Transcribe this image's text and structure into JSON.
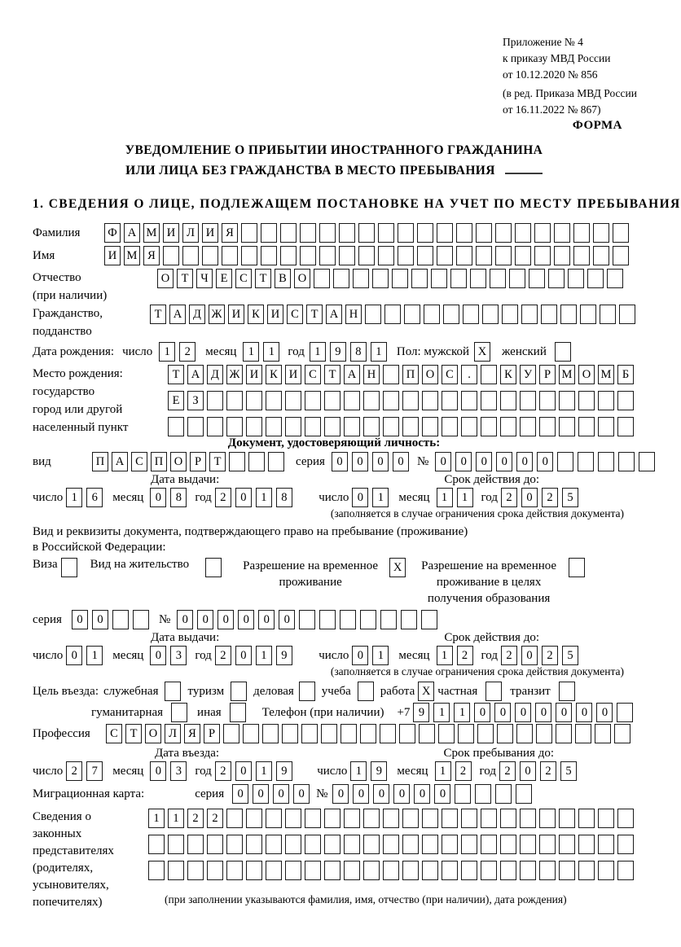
{
  "header": {
    "appendix": [
      "Приложение № 4",
      "к приказу МВД России",
      "от 10.12.2020 № 856"
    ],
    "edition": [
      "(в ред. Приказа МВД России",
      "от 16.11.2022 № 867)"
    ],
    "forma": "ФОРМА"
  },
  "title": {
    "line1": "УВЕДОМЛЕНИЕ О ПРИБЫТИИ ИНОСТРАННОГО ГРАЖДАНИНА",
    "line2": "ИЛИ ЛИЦА БЕЗ ГРАЖДАНСТВА В МЕСТО ПРЕБЫВАНИЯ"
  },
  "section1_heading": "1. СВЕДЕНИЯ О ЛИЦЕ, ПОДЛЕЖАЩЕМ ПОСТАНОВКЕ НА УЧЕТ ПО МЕСТУ ПРЕБЫВАНИЯ",
  "labels": {
    "surname": "Фамилия",
    "name": "Имя",
    "patronymic_1": "Отчество",
    "patronymic_2": "(при наличии)",
    "citizenship_1": "Гражданство,",
    "citizenship_2": "подданство",
    "birth_date": "Дата рождения:",
    "day": "число",
    "month": "месяц",
    "year": "год",
    "sex_male": "Пол: мужской",
    "sex_female": "женский",
    "birthplace_lines": [
      "Место рождения:",
      "государство",
      "город или другой",
      "населенный пункт"
    ],
    "identity_doc": "Документ, удостоверяющий личность:",
    "doc_kind": "вид",
    "series": "серия",
    "number": "№",
    "issue_date": "Дата выдачи:",
    "valid_until": "Срок действия до:",
    "validity_note": "(заполняется в случае ограничения срока действия документа)",
    "residence_line1": "Вид и реквизиты документа, подтверждающего право на пребывание (проживание)",
    "residence_line2": "в Российской Федерации:",
    "purpose": "Цель въезда:",
    "phone": "Телефон (при наличии)",
    "phone_prefix": "+7",
    "profession": "Профессия",
    "entry_date": "Дата въезда:",
    "stay_until": "Срок пребывания до:",
    "migration_card": "Миграционная карта:",
    "reps_lines": [
      "Сведения о",
      "законных",
      "представителях",
      "(родителях,",
      "усыновителях,",
      "попечителях)"
    ],
    "reps_note": "(при заполнении указываются фамилия, имя, отчество (при наличии), дата рождения)"
  },
  "visa_options": [
    {
      "label": "Виза",
      "value": "",
      "cells": 1
    },
    {
      "label": "Вид на жительство",
      "value": "",
      "cells": 1
    },
    {
      "label_lines": [
        "Разрешение на временное",
        "проживание"
      ],
      "value": "X",
      "cells": 1
    },
    {
      "label_lines": [
        "Разрешение на временное",
        "проживание в целях",
        "получения образования"
      ],
      "value": "",
      "cells": 1
    }
  ],
  "purpose_row1": [
    {
      "label": "служебная",
      "value": "",
      "cells": 1
    },
    {
      "label": "туризм",
      "value": "",
      "cells": 1
    },
    {
      "label": "деловая",
      "value": "",
      "cells": 1
    },
    {
      "label": "учеба",
      "value": "",
      "cells": 1
    },
    {
      "label": "работа",
      "value": "X",
      "cells": 1
    },
    {
      "label": "частная",
      "value": "",
      "cells": 1
    },
    {
      "label": "транзит",
      "value": "",
      "cells": 1
    }
  ],
  "purpose_row2": [
    {
      "label": "гуманитарная",
      "value": "",
      "cells": 1
    },
    {
      "label": "иная",
      "value": "",
      "cells": 1
    }
  ],
  "fields": {
    "surname": {
      "value": "ФАМИЛИЯ",
      "cells": 27
    },
    "name": {
      "value": "ИМЯ",
      "cells": 27
    },
    "patronymic": {
      "value": "ОТЧЕСТВО",
      "cells": 24
    },
    "citizenship": {
      "value": "ТАДЖИКИСТАН",
      "cells": 25
    },
    "birth_day": {
      "value": "12",
      "cells": 2
    },
    "birth_month": {
      "value": "11",
      "cells": 2
    },
    "birth_year": {
      "value": "1981",
      "cells": 4
    },
    "sex_male": {
      "value": "X",
      "cells": 1
    },
    "sex_female": {
      "value": "",
      "cells": 1
    },
    "birthplace_row1": {
      "value": "ТАДЖИКИСТАН ПОС. КУРМОМБ",
      "cells": 24
    },
    "birthplace_row2": {
      "value": "ЕЗ",
      "cells": 24
    },
    "birthplace_row3": {
      "value": "",
      "cells": 24
    },
    "id_doc_kind": {
      "value": "ПАСПОРТ",
      "cells": 10
    },
    "id_series": {
      "value": "0000",
      "cells": 4
    },
    "id_number": {
      "value": "000000",
      "cells": 11
    },
    "id_issue_day": {
      "value": "16",
      "cells": 2
    },
    "id_issue_month": {
      "value": "08",
      "cells": 2
    },
    "id_issue_year": {
      "value": "2018",
      "cells": 4
    },
    "id_valid_day": {
      "value": "01",
      "cells": 2
    },
    "id_valid_month": {
      "value": "11",
      "cells": 2
    },
    "id_valid_year": {
      "value": "2025",
      "cells": 4
    },
    "res_series": {
      "value": "00",
      "cells": 4
    },
    "res_number": {
      "value": "000000",
      "cells": 13
    },
    "res_issue_day": {
      "value": "01",
      "cells": 2
    },
    "res_issue_month": {
      "value": "03",
      "cells": 2
    },
    "res_issue_year": {
      "value": "2019",
      "cells": 4
    },
    "res_valid_day": {
      "value": "01",
      "cells": 2
    },
    "res_valid_month": {
      "value": "12",
      "cells": 2
    },
    "res_valid_year": {
      "value": "2025",
      "cells": 4
    },
    "phone": {
      "value": "9110000000",
      "cells": 11
    },
    "profession": {
      "value": "СТОЛЯР",
      "cells": 27
    },
    "entry_day": {
      "value": "27",
      "cells": 2
    },
    "entry_month": {
      "value": "03",
      "cells": 2
    },
    "entry_year": {
      "value": "2019",
      "cells": 4
    },
    "stay_day": {
      "value": "19",
      "cells": 2
    },
    "stay_month": {
      "value": "12",
      "cells": 2
    },
    "stay_year": {
      "value": "2025",
      "cells": 4
    },
    "mig_series": {
      "value": "0000",
      "cells": 4
    },
    "mig_number": {
      "value": "000000",
      "cells": 10
    },
    "reps_row1": {
      "value": "1122",
      "cells": 25
    },
    "reps_row2": {
      "value": "",
      "cells": 25
    },
    "reps_row3": {
      "value": "",
      "cells": 25
    }
  }
}
